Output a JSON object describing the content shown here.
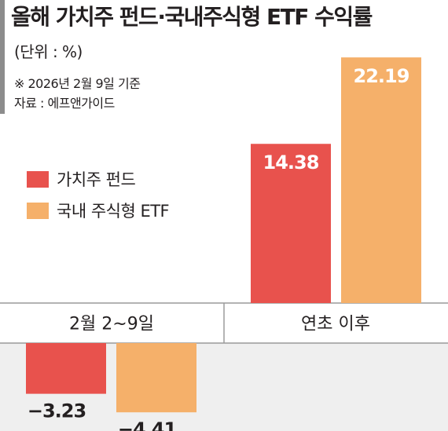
{
  "title": "올해 가치주 펀드·국내주식형 ETF 수익률",
  "unit": "(단위 : %)",
  "note": "※ 2026년 2월 9일 기준",
  "source": "자료 : 에프앤가이드",
  "colors": {
    "value_fund": "#e8524d",
    "etf": "#f5b06a",
    "lower_band": "#efefef",
    "divider": "#9a9a9a",
    "title_bar": "#8c8c8c"
  },
  "chart_data": {
    "type": "bar",
    "categories": [
      "2월 2~9일",
      "연초 이후"
    ],
    "series": [
      {
        "name": "가치주 펀드",
        "values": [
          -3.23,
          14.38
        ]
      },
      {
        "name": "국내 주식형 ETF",
        "values": [
          -4.41,
          22.19
        ]
      }
    ],
    "data_labels": [
      [
        "−3.23",
        "−4.41"
      ],
      [
        "14.38",
        "22.19"
      ]
    ],
    "legend_position": "left",
    "grid": false
  }
}
